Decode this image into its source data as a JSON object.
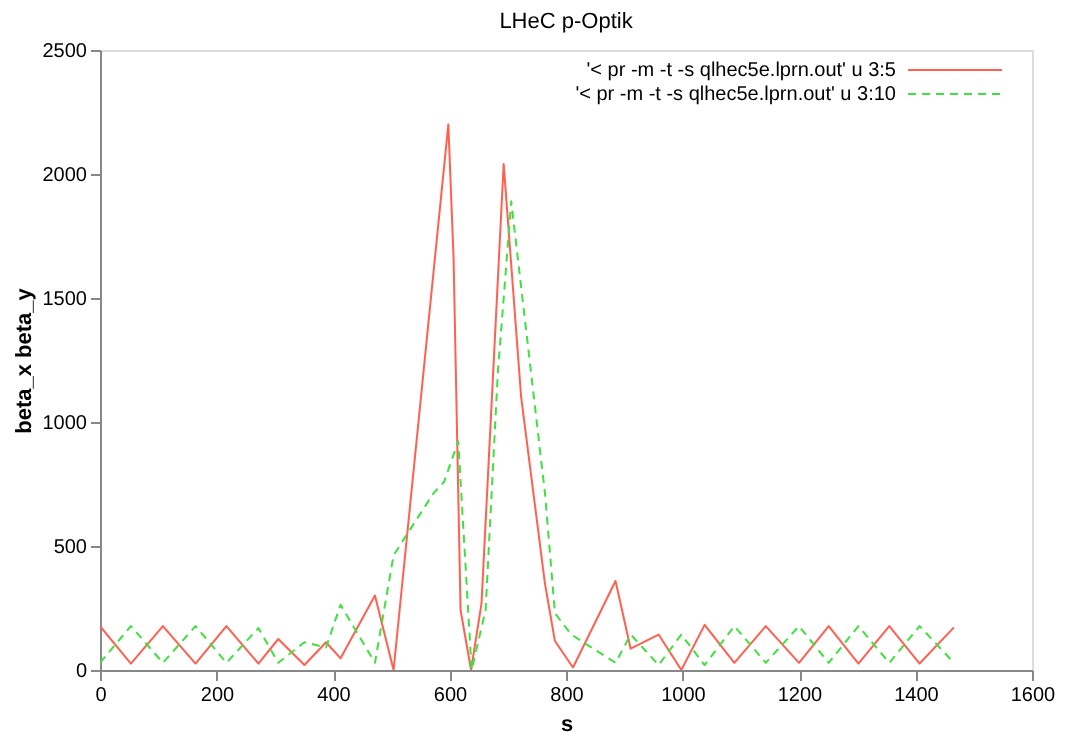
{
  "chart_data": {
    "type": "line",
    "title": "LHeC p-Optik",
    "xlabel": "s",
    "ylabel": "beta_x beta_y",
    "xlim": [
      0,
      1600
    ],
    "ylim": [
      0,
      2500
    ],
    "xticks": [
      0,
      200,
      400,
      600,
      800,
      1000,
      1200,
      1400,
      1600
    ],
    "yticks": [
      0,
      500,
      1000,
      1500,
      2000,
      2500
    ],
    "grid": false,
    "legend": "top right",
    "marker": "none",
    "series": [
      {
        "name": "'< pr -m -t -s qlhec5e.lprn.out' u 3:5",
        "color": "#ff6050",
        "line_style": "solid",
        "x": [
          0,
          53,
          108,
          164,
          217,
          272,
          306,
          351,
          388,
          413,
          472,
          504,
          598,
          607,
          619,
          637,
          655,
          693,
          723,
          764,
          781,
          812,
          885,
          911,
          959,
          998,
          1038,
          1089,
          1143,
          1200,
          1251,
          1302,
          1355,
          1407,
          1466
        ],
        "values": [
          177,
          26,
          177,
          26,
          177,
          26,
          125,
          20,
          112,
          47,
          300,
          0,
          2200,
          1660,
          242,
          0,
          270,
          2040,
          1100,
          346,
          117,
          10,
          359,
          86,
          143,
          0,
          182,
          29,
          177,
          29,
          177,
          26,
          177,
          26,
          172
        ]
      },
      {
        "name": "'< pr -m -t -s qlhec5e.lprn.out' u 3:10",
        "color": "#40e040",
        "line_style": "dashed",
        "x": [
          0,
          53,
          108,
          164,
          217,
          272,
          306,
          351,
          388,
          413,
          472,
          504,
          572,
          591,
          615,
          638,
          662,
          683,
          706,
          764,
          781,
          809,
          885,
          911,
          959,
          998,
          1038,
          1089,
          1143,
          1200,
          1251,
          1302,
          1355,
          1407,
          1466
        ],
        "values": [
          29,
          177,
          29,
          177,
          29,
          169,
          29,
          112,
          91,
          263,
          29,
          463,
          711,
          760,
          922,
          0,
          242,
          1200,
          1890,
          711,
          229,
          143,
          29,
          143,
          20,
          143,
          20,
          177,
          29,
          177,
          29,
          177,
          29,
          177,
          29
        ]
      }
    ]
  }
}
